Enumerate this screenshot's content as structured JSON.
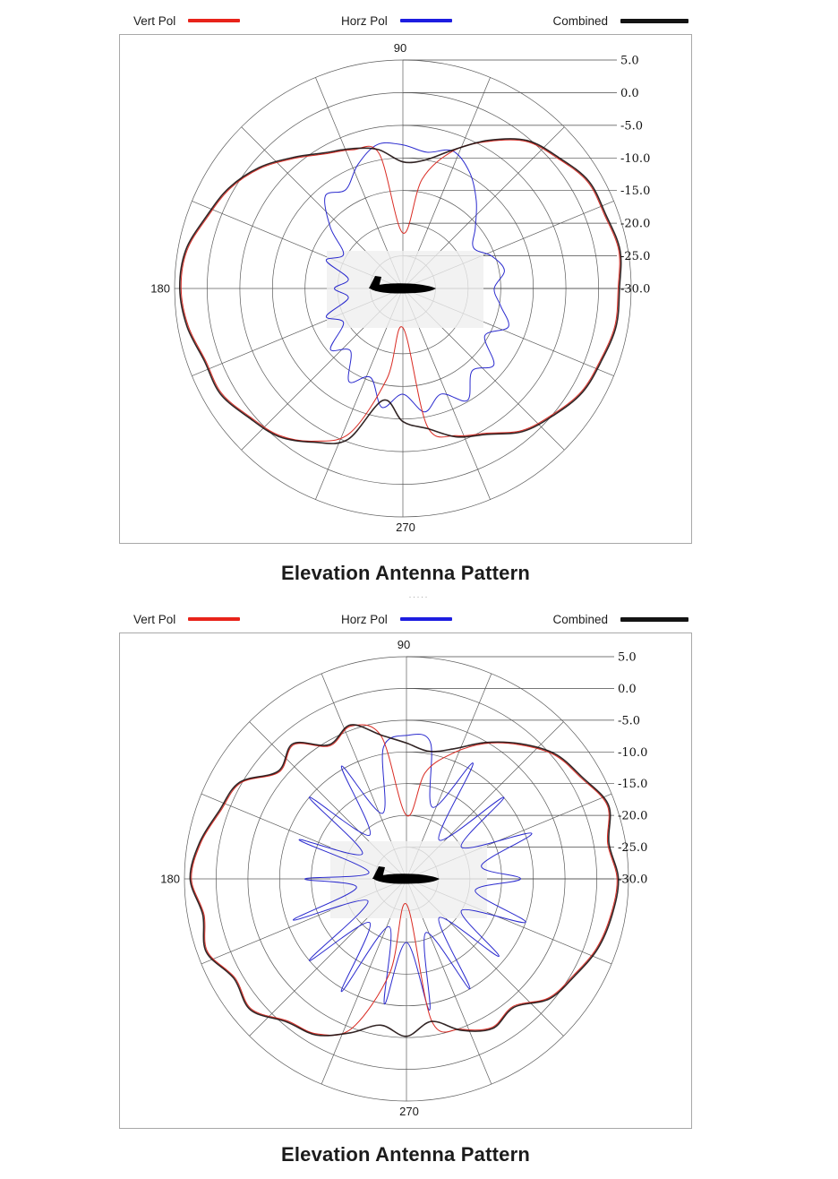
{
  "between_text": ".....",
  "chart_data": [
    {
      "type": "polar-line",
      "caption": "Elevation Antenna Pattern",
      "legend": [
        {
          "label": "Vert Pol",
          "color": "#e8231a"
        },
        {
          "label": "Horz Pol",
          "color": "#1d1de0"
        },
        {
          "label": "Combined",
          "color": "#141414"
        }
      ],
      "angle_labels": [
        {
          "angle": 90,
          "label": "90"
        },
        {
          "angle": 180,
          "label": "180"
        },
        {
          "angle": 270,
          "label": "270"
        }
      ],
      "radial_ticks": [
        5.0,
        0.0,
        -5.0,
        -10.0,
        -15.0,
        -20.0,
        -25.0,
        -30.0
      ],
      "r_min": -30.0,
      "r_max": 5.0,
      "grid_step_deg": 22.5,
      "center_marker": "aircraft-silhouette",
      "series": [
        {
          "name": "Vert Pol",
          "color": "#d92a22",
          "width": 1,
          "angle_start_deg": 0,
          "angle_step_deg": 10,
          "values": [
            3.0,
            3.6,
            2.9,
            2.7,
            1.0,
            -0.6,
            -4.0,
            -7.6,
            -13.0,
            -21.5,
            -9.0,
            -7.4,
            -6.2,
            -4.0,
            -1.4,
            0.6,
            1.9,
            3.6,
            4.0,
            3.4,
            2.2,
            2.1,
            0.6,
            -0.6,
            -3.0,
            -6.5,
            -16.0,
            -24.0,
            -8.6,
            -6.0,
            -4.4,
            -1.6,
            0.0,
            1.6,
            2.2,
            3.0
          ]
        },
        {
          "name": "Horz Pol",
          "color": "#2a2ace",
          "width": 1,
          "angle_start_deg": 0,
          "angle_step_deg": 10,
          "values": [
            -16.0,
            -14.2,
            -15.5,
            -17.5,
            -15.5,
            -12.5,
            -9.5,
            -7.6,
            -8.8,
            -8.0,
            -7.6,
            -9.8,
            -12.5,
            -11.5,
            -15.5,
            -19.5,
            -17.5,
            -21.5,
            -19.5,
            -21.5,
            -17.5,
            -19.5,
            -15.5,
            -17.5,
            -13.5,
            -15.5,
            -11.5,
            -13.8,
            -10.8,
            -12.8,
            -10.2,
            -13.5,
            -11.8,
            -15.5,
            -12.8,
            -14.8
          ]
        },
        {
          "name": "Combined",
          "color": "#1c0d0d",
          "width": 1.6,
          "angle_start_deg": 0,
          "angle_step_deg": 10,
          "values": [
            3.2,
            3.8,
            3.1,
            2.9,
            1.2,
            -0.4,
            -3.8,
            -7.4,
            -10.0,
            -10.6,
            -8.4,
            -7.2,
            -6.0,
            -3.8,
            -1.2,
            0.8,
            2.1,
            3.8,
            4.2,
            3.6,
            2.4,
            2.3,
            0.8,
            -0.4,
            -2.8,
            -5.4,
            -12.6,
            -9.6,
            -8.2,
            -5.8,
            -4.2,
            -1.4,
            0.2,
            1.8,
            2.4,
            3.2
          ]
        }
      ]
    },
    {
      "type": "polar-line",
      "caption": "Elevation Antenna Pattern",
      "legend": [
        {
          "label": "Vert Pol",
          "color": "#e8231a"
        },
        {
          "label": "Horz Pol",
          "color": "#1d1de0"
        },
        {
          "label": "Combined",
          "color": "#141414"
        }
      ],
      "angle_labels": [
        {
          "angle": 90,
          "label": "90"
        },
        {
          "angle": 180,
          "label": "180"
        },
        {
          "angle": 270,
          "label": "270"
        }
      ],
      "radial_ticks": [
        5.0,
        0.0,
        -5.0,
        -10.0,
        -15.0,
        -20.0,
        -25.0,
        -30.0
      ],
      "r_min": -30.0,
      "r_max": 5.0,
      "grid_step_deg": 22.5,
      "center_marker": "aircraft-silhouette",
      "series": [
        {
          "name": "Vert Pol",
          "color": "#d92a22",
          "width": 1,
          "angle_start_deg": 0,
          "angle_step_deg": 10,
          "values": [
            3.2,
            2.2,
            3.7,
            1.8,
            0.4,
            -2.4,
            -5.4,
            -9.0,
            -13.0,
            -20.0,
            -7.2,
            -4.4,
            -5.8,
            -2.4,
            -3.8,
            0.2,
            1.2,
            2.9,
            3.9,
            2.4,
            3.4,
            1.2,
            1.9,
            -0.8,
            -1.8,
            -5.0,
            -15.0,
            -26.0,
            -7.4,
            -4.8,
            -3.0,
            -3.8,
            -0.8,
            0.4,
            1.9,
            2.7
          ]
        },
        {
          "name": "Horz Pol",
          "color": "#2a2ace",
          "width": 1,
          "angle_start_deg": 0,
          "angle_step_deg": 10,
          "values": [
            -12.0,
            -18.0,
            -9.0,
            -20.0,
            -10.0,
            -22.0,
            -9.0,
            -18.0,
            -8.2,
            -7.4,
            -9.0,
            -19.0,
            -9.5,
            -21.0,
            -10.0,
            -22.0,
            -12.0,
            -24.0,
            -14.0,
            -22.0,
            -11.0,
            -23.0,
            -10.0,
            -21.0,
            -9.5,
            -22.0,
            -10.0,
            -20.0,
            -9.0,
            -21.0,
            -10.0,
            -22.0,
            -11.0,
            -20.0,
            -10.0,
            -19.0
          ]
        },
        {
          "name": "Combined",
          "color": "#1c0d0d",
          "width": 1.6,
          "angle_start_deg": 0,
          "angle_step_deg": 10,
          "values": [
            3.4,
            2.4,
            3.9,
            2.0,
            0.6,
            -2.2,
            -5.2,
            -8.2,
            -9.6,
            -8.6,
            -7.0,
            -4.2,
            -5.6,
            -2.2,
            -3.6,
            0.4,
            1.4,
            3.1,
            4.1,
            2.6,
            3.6,
            1.4,
            2.1,
            -0.6,
            -1.6,
            -4.2,
            -6.6,
            -5.2,
            -7.2,
            -4.6,
            -2.8,
            -3.6,
            -0.6,
            0.6,
            2.1,
            2.9
          ]
        }
      ]
    }
  ]
}
